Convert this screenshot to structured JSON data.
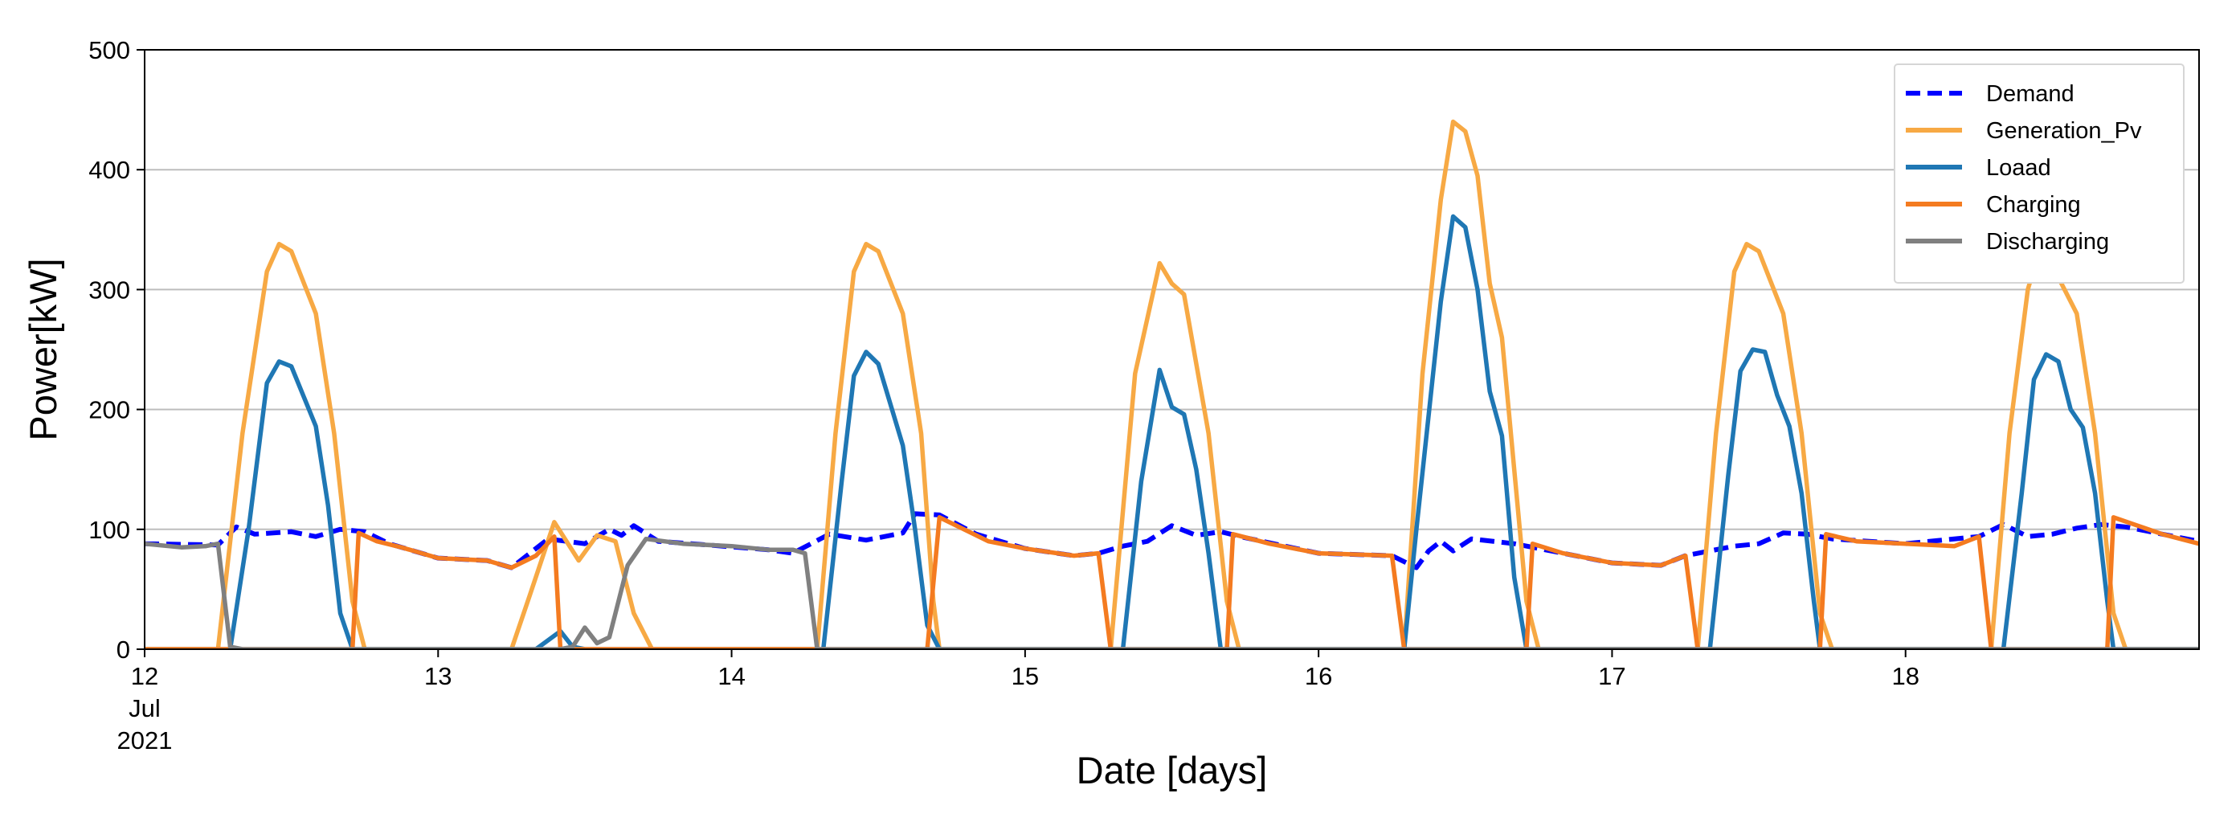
{
  "chart_data": {
    "type": "line",
    "xlabel": "Date [days]",
    "ylabel": "Power[kW]",
    "ylim": [
      0,
      500
    ],
    "xlim": [
      "2021-07-12 00:00",
      "2021-07-19 00:00"
    ],
    "grid": "horizontal",
    "legend": {
      "placement": "top-right"
    },
    "y_ticks": [
      "0",
      "100",
      "200",
      "300",
      "400",
      "500"
    ],
    "x_ticks": [
      {
        "x": "2021-07-12",
        "lines": [
          "12",
          "Jul",
          "2021"
        ]
      },
      {
        "x": "2021-07-13",
        "lines": [
          "13"
        ]
      },
      {
        "x": "2021-07-14",
        "lines": [
          "14"
        ]
      },
      {
        "x": "2021-07-15",
        "lines": [
          "15"
        ]
      },
      {
        "x": "2021-07-16",
        "lines": [
          "16"
        ]
      },
      {
        "x": "2021-07-17",
        "lines": [
          "17"
        ]
      },
      {
        "x": "2021-07-18",
        "lines": [
          "18"
        ]
      }
    ],
    "series": [
      {
        "name": "Demand",
        "color": "#0000ff",
        "style": "dashed",
        "points": [
          [
            "2021-07-12 00:00",
            88
          ],
          [
            "2021-07-12 06:00",
            87
          ],
          [
            "2021-07-12 07:30",
            102
          ],
          [
            "2021-07-12 09:00",
            96
          ],
          [
            "2021-07-12 12:00",
            98
          ],
          [
            "2021-07-12 14:00",
            94
          ],
          [
            "2021-07-12 16:00",
            100
          ],
          [
            "2021-07-12 18:00",
            98
          ],
          [
            "2021-07-12 20:00",
            88
          ],
          [
            "2021-07-13 00:00",
            76
          ],
          [
            "2021-07-13 04:00",
            74
          ],
          [
            "2021-07-13 06:00",
            68
          ],
          [
            "2021-07-13 09:00",
            92
          ],
          [
            "2021-07-13 12:00",
            88
          ],
          [
            "2021-07-13 14:00",
            100
          ],
          [
            "2021-07-13 15:00",
            95
          ],
          [
            "2021-07-13 16:00",
            103
          ],
          [
            "2021-07-13 18:00",
            90
          ],
          [
            "2021-07-13 22:00",
            87
          ],
          [
            "2021-07-14 03:00",
            83
          ],
          [
            "2021-07-14 05:00",
            80
          ],
          [
            "2021-07-14 08:00",
            96
          ],
          [
            "2021-07-14 11:00",
            91
          ],
          [
            "2021-07-14 14:00",
            97
          ],
          [
            "2021-07-14 15:00",
            113
          ],
          [
            "2021-07-14 17:00",
            112
          ],
          [
            "2021-07-14 20:00",
            96
          ],
          [
            "2021-07-15 00:00",
            84
          ],
          [
            "2021-07-15 04:00",
            78
          ],
          [
            "2021-07-15 06:00",
            80
          ],
          [
            "2021-07-15 08:00",
            86
          ],
          [
            "2021-07-15 10:00",
            90
          ],
          [
            "2021-07-15 12:00",
            103
          ],
          [
            "2021-07-15 14:00",
            95
          ],
          [
            "2021-07-15 16:00",
            98
          ],
          [
            "2021-07-15 18:00",
            93
          ],
          [
            "2021-07-16 00:00",
            80
          ],
          [
            "2021-07-16 06:00",
            78
          ],
          [
            "2021-07-16 08:00",
            68
          ],
          [
            "2021-07-16 09:00",
            82
          ],
          [
            "2021-07-16 10:00",
            90
          ],
          [
            "2021-07-16 11:00",
            82
          ],
          [
            "2021-07-16 12:30",
            92
          ],
          [
            "2021-07-16 16:00",
            88
          ],
          [
            "2021-07-16 20:00",
            80
          ],
          [
            "2021-07-17 00:00",
            72
          ],
          [
            "2021-07-17 04:00",
            70
          ],
          [
            "2021-07-17 06:00",
            78
          ],
          [
            "2021-07-17 10:00",
            86
          ],
          [
            "2021-07-17 12:00",
            88
          ],
          [
            "2021-07-17 14:00",
            97
          ],
          [
            "2021-07-17 16:00",
            96
          ],
          [
            "2021-07-17 18:00",
            92
          ],
          [
            "2021-07-18 00:00",
            88
          ],
          [
            "2021-07-18 06:00",
            94
          ],
          [
            "2021-07-18 08:00",
            104
          ],
          [
            "2021-07-18 10:00",
            94
          ],
          [
            "2021-07-18 12:00",
            96
          ],
          [
            "2021-07-18 14:00",
            101
          ],
          [
            "2021-07-18 16:00",
            104
          ],
          [
            "2021-07-18 18:00",
            102
          ],
          [
            "2021-07-18 21:00",
            96
          ],
          [
            "2021-07-19 00:00",
            90
          ]
        ]
      },
      {
        "name": "Generation_Pv",
        "color": "#f7a944",
        "style": "solid",
        "points": [
          [
            "2021-07-12 00:00",
            0
          ],
          [
            "2021-07-12 06:00",
            0
          ],
          [
            "2021-07-12 08:00",
            180
          ],
          [
            "2021-07-12 10:00",
            315
          ],
          [
            "2021-07-12 11:00",
            338
          ],
          [
            "2021-07-12 12:00",
            332
          ],
          [
            "2021-07-12 14:00",
            280
          ],
          [
            "2021-07-12 15:30",
            180
          ],
          [
            "2021-07-12 17:00",
            40
          ],
          [
            "2021-07-12 18:00",
            0
          ],
          [
            "2021-07-13 06:00",
            0
          ],
          [
            "2021-07-13 07:30",
            45
          ],
          [
            "2021-07-13 09:30",
            106
          ],
          [
            "2021-07-13 11:30",
            74
          ],
          [
            "2021-07-13 13:00",
            95
          ],
          [
            "2021-07-13 14:30",
            90
          ],
          [
            "2021-07-13 16:00",
            30
          ],
          [
            "2021-07-13 17:30",
            0
          ],
          [
            "2021-07-14 07:00",
            0
          ],
          [
            "2021-07-14 08:30",
            180
          ],
          [
            "2021-07-14 10:00",
            315
          ],
          [
            "2021-07-14 11:00",
            338
          ],
          [
            "2021-07-14 12:00",
            332
          ],
          [
            "2021-07-14 14:00",
            280
          ],
          [
            "2021-07-14 15:30",
            180
          ],
          [
            "2021-07-14 16:30",
            40
          ],
          [
            "2021-07-14 17:00",
            0
          ],
          [
            "2021-07-15 07:00",
            0
          ],
          [
            "2021-07-15 09:00",
            230
          ],
          [
            "2021-07-15 11:00",
            322
          ],
          [
            "2021-07-15 12:00",
            305
          ],
          [
            "2021-07-15 13:00",
            296
          ],
          [
            "2021-07-15 15:00",
            180
          ],
          [
            "2021-07-15 16:30",
            40
          ],
          [
            "2021-07-15 17:30",
            0
          ],
          [
            "2021-07-16 07:00",
            0
          ],
          [
            "2021-07-16 08:30",
            230
          ],
          [
            "2021-07-16 10:00",
            375
          ],
          [
            "2021-07-16 11:00",
            440
          ],
          [
            "2021-07-16 12:00",
            432
          ],
          [
            "2021-07-16 13:00",
            395
          ],
          [
            "2021-07-16 14:00",
            305
          ],
          [
            "2021-07-16 15:00",
            260
          ],
          [
            "2021-07-16 17:00",
            40
          ],
          [
            "2021-07-16 18:00",
            0
          ],
          [
            "2021-07-17 07:00",
            0
          ],
          [
            "2021-07-17 08:30",
            180
          ],
          [
            "2021-07-17 10:00",
            315
          ],
          [
            "2021-07-17 11:00",
            338
          ],
          [
            "2021-07-17 12:00",
            332
          ],
          [
            "2021-07-17 14:00",
            280
          ],
          [
            "2021-07-17 15:30",
            180
          ],
          [
            "2021-07-17 17:00",
            30
          ],
          [
            "2021-07-17 18:00",
            0
          ],
          [
            "2021-07-18 07:00",
            0
          ],
          [
            "2021-07-18 08:30",
            180
          ],
          [
            "2021-07-18 10:00",
            300
          ],
          [
            "2021-07-18 11:00",
            335
          ],
          [
            "2021-07-18 12:00",
            320
          ],
          [
            "2021-07-18 14:00",
            280
          ],
          [
            "2021-07-18 15:30",
            180
          ],
          [
            "2021-07-18 17:00",
            30
          ],
          [
            "2021-07-18 18:00",
            0
          ],
          [
            "2021-07-19 00:00",
            0
          ]
        ]
      },
      {
        "name": "Loaad",
        "color": "#1f77b4",
        "style": "solid",
        "points": [
          [
            "2021-07-12 00:00",
            0
          ],
          [
            "2021-07-12 07:00",
            0
          ],
          [
            "2021-07-12 08:30",
            100
          ],
          [
            "2021-07-12 10:00",
            222
          ],
          [
            "2021-07-12 11:00",
            240
          ],
          [
            "2021-07-12 12:00",
            236
          ],
          [
            "2021-07-12 14:00",
            186
          ],
          [
            "2021-07-12 15:00",
            120
          ],
          [
            "2021-07-12 16:00",
            30
          ],
          [
            "2021-07-12 17:00",
            0
          ],
          [
            "2021-07-13 08:00",
            0
          ],
          [
            "2021-07-13 10:00",
            15
          ],
          [
            "2021-07-13 11:00",
            2
          ],
          [
            "2021-07-13 12:00",
            0
          ],
          [
            "2021-07-14 07:30",
            0
          ],
          [
            "2021-07-14 09:00",
            140
          ],
          [
            "2021-07-14 10:00",
            228
          ],
          [
            "2021-07-14 11:00",
            248
          ],
          [
            "2021-07-14 12:00",
            238
          ],
          [
            "2021-07-14 14:00",
            170
          ],
          [
            "2021-07-14 15:00",
            100
          ],
          [
            "2021-07-14 16:00",
            20
          ],
          [
            "2021-07-14 17:00",
            0
          ],
          [
            "2021-07-15 08:00",
            0
          ],
          [
            "2021-07-15 09:30",
            140
          ],
          [
            "2021-07-15 11:00",
            233
          ],
          [
            "2021-07-15 12:00",
            202
          ],
          [
            "2021-07-15 13:00",
            196
          ],
          [
            "2021-07-15 14:00",
            150
          ],
          [
            "2021-07-15 15:00",
            80
          ],
          [
            "2021-07-15 16:00",
            0
          ],
          [
            "2021-07-16 07:00",
            0
          ],
          [
            "2021-07-16 08:00",
            100
          ],
          [
            "2021-07-16 10:00",
            290
          ],
          [
            "2021-07-16 11:00",
            361
          ],
          [
            "2021-07-16 12:00",
            352
          ],
          [
            "2021-07-16 13:00",
            300
          ],
          [
            "2021-07-16 14:00",
            215
          ],
          [
            "2021-07-16 15:00",
            178
          ],
          [
            "2021-07-16 16:00",
            60
          ],
          [
            "2021-07-16 17:00",
            0
          ],
          [
            "2021-07-17 08:00",
            0
          ],
          [
            "2021-07-17 09:30",
            145
          ],
          [
            "2021-07-17 10:30",
            232
          ],
          [
            "2021-07-17 11:30",
            250
          ],
          [
            "2021-07-17 12:30",
            248
          ],
          [
            "2021-07-17 13:30",
            212
          ],
          [
            "2021-07-17 14:30",
            186
          ],
          [
            "2021-07-17 15:30",
            130
          ],
          [
            "2021-07-17 16:30",
            40
          ],
          [
            "2021-07-17 17:00",
            0
          ],
          [
            "2021-07-18 08:00",
            0
          ],
          [
            "2021-07-18 09:30",
            130
          ],
          [
            "2021-07-18 10:30",
            225
          ],
          [
            "2021-07-18 11:30",
            246
          ],
          [
            "2021-07-18 12:30",
            240
          ],
          [
            "2021-07-18 13:30",
            200
          ],
          [
            "2021-07-18 14:30",
            185
          ],
          [
            "2021-07-18 15:30",
            130
          ],
          [
            "2021-07-18 16:30",
            40
          ],
          [
            "2021-07-18 17:00",
            0
          ],
          [
            "2021-07-19 00:00",
            0
          ]
        ]
      },
      {
        "name": "Charging",
        "color": "#f47b20",
        "style": "solid",
        "points": [
          [
            "2021-07-12 00:00",
            0
          ],
          [
            "2021-07-12 17:00",
            0
          ],
          [
            "2021-07-12 17:30",
            97
          ],
          [
            "2021-07-12 19:00",
            90
          ],
          [
            "2021-07-12 21:00",
            85
          ],
          [
            "2021-07-13 00:00",
            76
          ],
          [
            "2021-07-13 04:00",
            74
          ],
          [
            "2021-07-13 06:00",
            68
          ],
          [
            "2021-07-13 08:00",
            78
          ],
          [
            "2021-07-13 09:30",
            94
          ],
          [
            "2021-07-13 10:00",
            0
          ],
          [
            "2021-07-14 16:00",
            0
          ],
          [
            "2021-07-14 17:00",
            110
          ],
          [
            "2021-07-14 19:00",
            100
          ],
          [
            "2021-07-14 21:00",
            90
          ],
          [
            "2021-07-15 00:00",
            84
          ],
          [
            "2021-07-15 04:00",
            78
          ],
          [
            "2021-07-15 06:00",
            80
          ],
          [
            "2021-07-15 07:00",
            0
          ],
          [
            "2021-07-15 16:30",
            0
          ],
          [
            "2021-07-15 17:00",
            96
          ],
          [
            "2021-07-15 20:00",
            88
          ],
          [
            "2021-07-16 00:00",
            80
          ],
          [
            "2021-07-16 06:00",
            78
          ],
          [
            "2021-07-16 07:00",
            0
          ],
          [
            "2021-07-16 17:00",
            0
          ],
          [
            "2021-07-16 17:30",
            88
          ],
          [
            "2021-07-16 20:00",
            80
          ],
          [
            "2021-07-17 00:00",
            72
          ],
          [
            "2021-07-17 04:00",
            70
          ],
          [
            "2021-07-17 06:00",
            78
          ],
          [
            "2021-07-17 07:00",
            0
          ],
          [
            "2021-07-17 17:00",
            0
          ],
          [
            "2021-07-17 17:30",
            96
          ],
          [
            "2021-07-17 20:00",
            90
          ],
          [
            "2021-07-18 00:00",
            88
          ],
          [
            "2021-07-18 04:00",
            86
          ],
          [
            "2021-07-18 06:00",
            94
          ],
          [
            "2021-07-18 07:00",
            0
          ],
          [
            "2021-07-18 16:30",
            0
          ],
          [
            "2021-07-18 17:00",
            110
          ],
          [
            "2021-07-18 19:00",
            103
          ],
          [
            "2021-07-18 21:00",
            96
          ],
          [
            "2021-07-19 00:00",
            88
          ]
        ]
      },
      {
        "name": "Discharging",
        "color": "#808080",
        "style": "solid",
        "points": [
          [
            "2021-07-12 00:00",
            88
          ],
          [
            "2021-07-12 03:00",
            85
          ],
          [
            "2021-07-12 05:00",
            86
          ],
          [
            "2021-07-12 06:00",
            88
          ],
          [
            "2021-07-12 07:00",
            2
          ],
          [
            "2021-07-12 08:00",
            0
          ],
          [
            "2021-07-13 10:00",
            0
          ],
          [
            "2021-07-13 11:00",
            2
          ],
          [
            "2021-07-13 12:00",
            18
          ],
          [
            "2021-07-13 13:00",
            5
          ],
          [
            "2021-07-13 14:00",
            10
          ],
          [
            "2021-07-13 15:30",
            70
          ],
          [
            "2021-07-13 17:00",
            92
          ],
          [
            "2021-07-13 20:00",
            88
          ],
          [
            "2021-07-14 00:00",
            86
          ],
          [
            "2021-07-14 03:00",
            83
          ],
          [
            "2021-07-14 05:00",
            83
          ],
          [
            "2021-07-14 06:00",
            80
          ],
          [
            "2021-07-14 07:00",
            0
          ],
          [
            "2021-07-19 00:00",
            0
          ]
        ]
      }
    ]
  }
}
